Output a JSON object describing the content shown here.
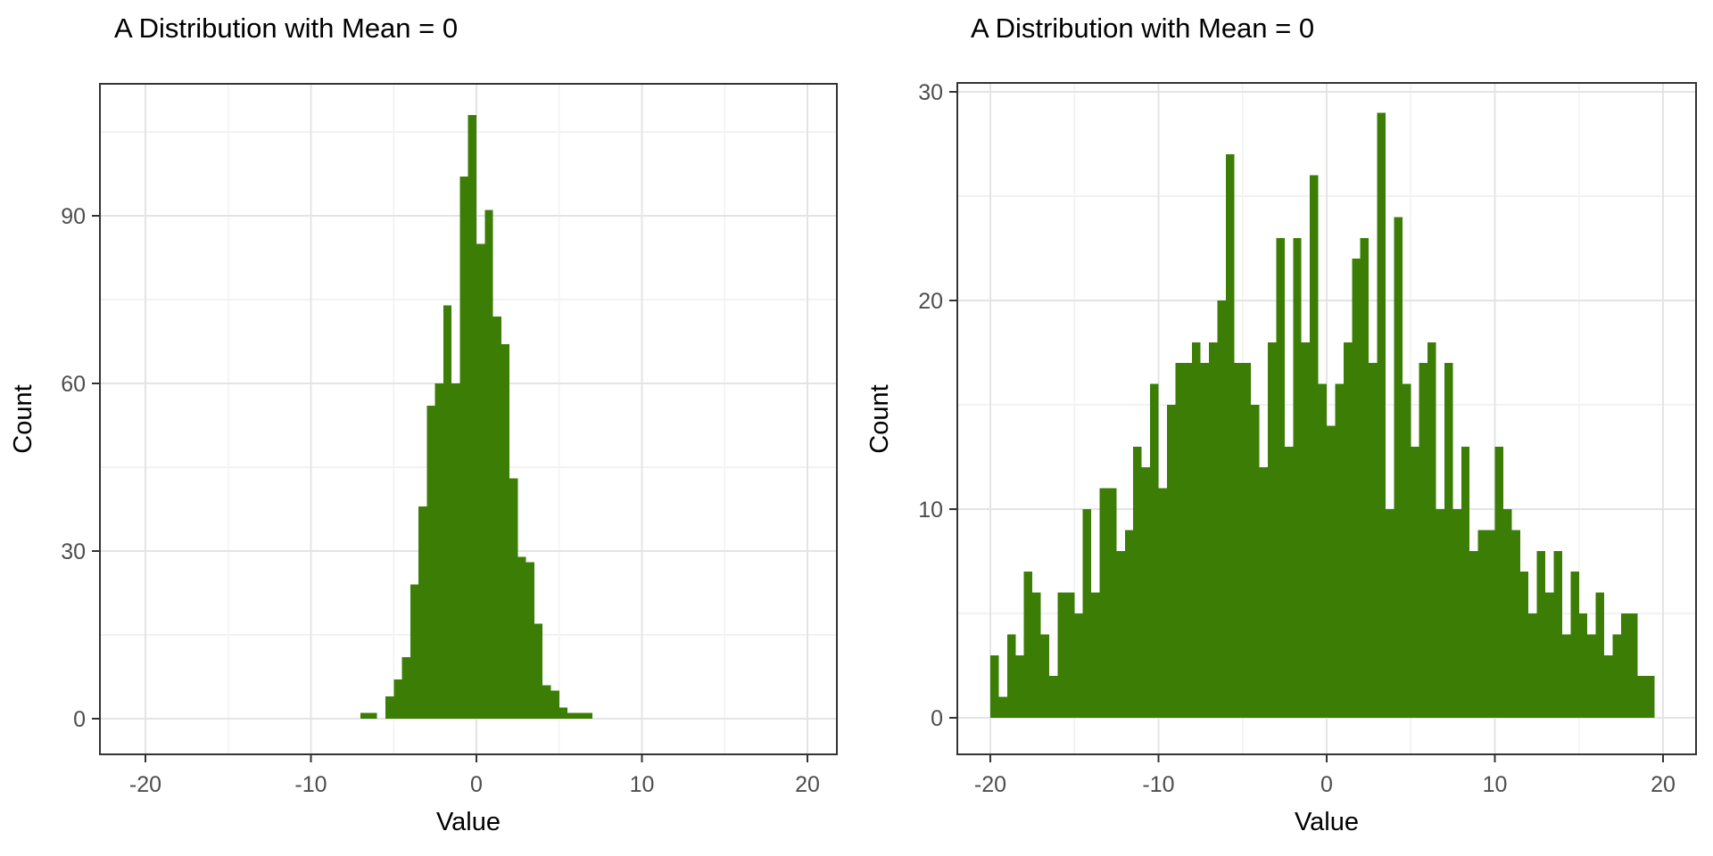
{
  "figure": {
    "background": "#FFFFFF",
    "n_panels": 2,
    "theme": "bw-white-panel-grey-grid"
  },
  "colors": {
    "bar": "#3B7D05",
    "grid_major": "#E4E4E4",
    "grid_minor": "#F2F2F2",
    "panel_border": "#333333",
    "tick_mark": "#333333",
    "tick_label": "#4D4D4D",
    "text": "#000000"
  },
  "chart_data": [
    {
      "type": "bar",
      "subtype": "histogram",
      "title": "A Distribution with Mean = 0",
      "xlabel": "Value",
      "ylabel": "Count",
      "legend": "none",
      "grid": "major+minor",
      "x_ticks": [
        -20,
        -10,
        0,
        10,
        20
      ],
      "y_ticks": [
        0,
        30,
        60,
        90
      ],
      "xlim": [
        -22,
        22
      ],
      "ylim": [
        0,
        113
      ],
      "bin_start": -7.0,
      "bin_width": 0.5,
      "counts": [
        1,
        1,
        0,
        4,
        7,
        11,
        24,
        38,
        56,
        60,
        74,
        60,
        97,
        108,
        85,
        91,
        72,
        67,
        43,
        29,
        28,
        17,
        6,
        5,
        2,
        1,
        1,
        1
      ]
    },
    {
      "type": "bar",
      "subtype": "histogram",
      "title": "A Distribution with Mean = 0",
      "xlabel": "Value",
      "ylabel": "Count",
      "legend": "none",
      "grid": "major+minor",
      "x_ticks": [
        -20,
        -10,
        0,
        10,
        20
      ],
      "y_ticks": [
        0,
        10,
        20,
        30
      ],
      "xlim": [
        -22,
        22
      ],
      "ylim": [
        0,
        30.5
      ],
      "bin_start": -20.0,
      "bin_width": 0.5,
      "counts": [
        3,
        1,
        4,
        3,
        7,
        6,
        4,
        2,
        6,
        6,
        5,
        10,
        6,
        11,
        11,
        8,
        9,
        13,
        12,
        16,
        11,
        15,
        17,
        17,
        18,
        17,
        18,
        20,
        27,
        17,
        17,
        15,
        12,
        18,
        23,
        13,
        23,
        18,
        26,
        16,
        14,
        16,
        18,
        22,
        23,
        17,
        29,
        10,
        24,
        16,
        13,
        17,
        18,
        10,
        17,
        10,
        13,
        8,
        9,
        9,
        13,
        10,
        9,
        7,
        5,
        8,
        6,
        8,
        4,
        7,
        5,
        4,
        6,
        3,
        4,
        5,
        5,
        2,
        2
      ]
    }
  ]
}
